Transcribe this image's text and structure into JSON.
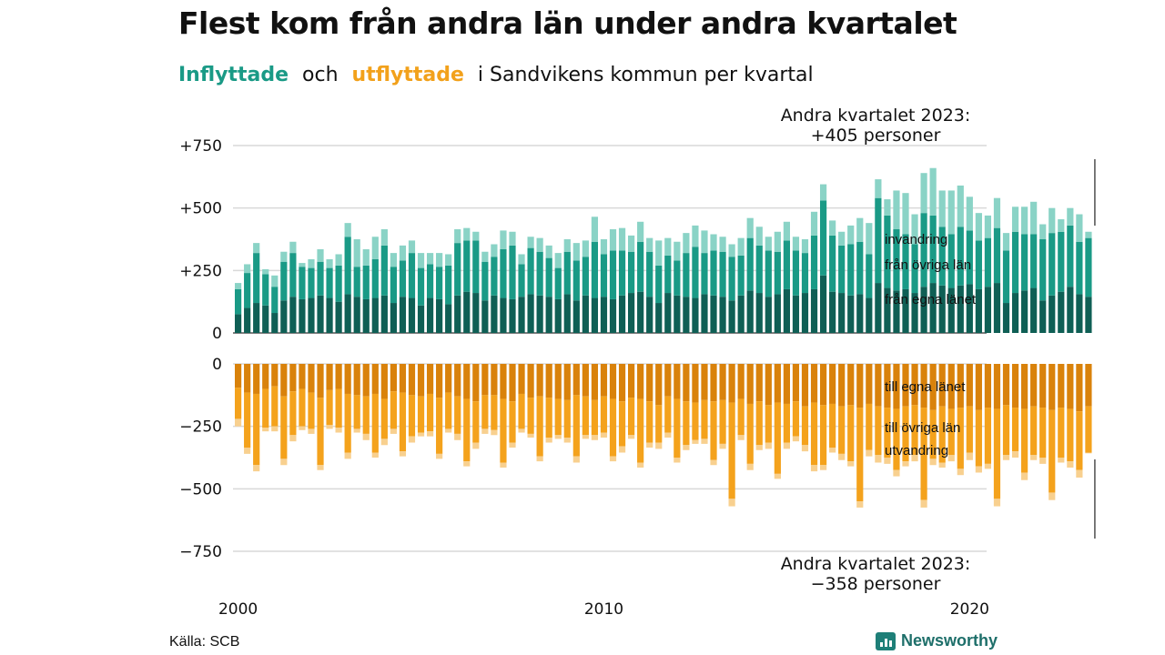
{
  "title": "Flest kom från andra län under andra kvartalet",
  "subtitle": {
    "in_word": "Inflyttade",
    "and_word": "och",
    "out_word": "utflyttade",
    "rest": "i Sandvikens kommun per kvartal"
  },
  "source": "Källa: SCB",
  "brand": "Newsworthy",
  "colors": {
    "in_local": "#0f5f55",
    "in_other": "#1a9a86",
    "in_abroad": "#8ad3c6",
    "out_local": "#d9820b",
    "out_other": "#f4a21c",
    "out_abroad": "#f8d08f",
    "grid": "#d9d9d9"
  },
  "chart_data": {
    "type": "bar",
    "stacked": true,
    "x_ticks": [
      "2000",
      "2010",
      "2020"
    ],
    "y_ticks_top": [
      "+750",
      "+500",
      "+250",
      "0"
    ],
    "y_ticks_bottom": [
      "0",
      "−250",
      "−500",
      "−750"
    ],
    "ylim_top": [
      0,
      750
    ],
    "ylim_bottom": [
      -750,
      0
    ],
    "grid": true,
    "annotation_top": [
      "Andra kvartalet 2023:",
      "+405 personer"
    ],
    "annotation_bottom": [
      "Andra kvartalet 2023:",
      "−358 personer"
    ],
    "series_labels_in": [
      "invandring",
      "från övriga län",
      "från egna länet"
    ],
    "series_labels_out": [
      "till egna länet",
      "till övriga län",
      "utvandring"
    ],
    "start_year": 2000,
    "start_quarter": 1,
    "in": {
      "local": [
        75,
        100,
        120,
        110,
        80,
        130,
        145,
        135,
        140,
        150,
        140,
        125,
        155,
        145,
        135,
        140,
        150,
        120,
        145,
        140,
        110,
        140,
        135,
        115,
        150,
        165,
        160,
        130,
        150,
        140,
        135,
        145,
        155,
        150,
        145,
        135,
        155,
        130,
        150,
        140,
        145,
        135,
        150,
        160,
        165,
        145,
        120,
        160,
        150,
        145,
        140,
        155,
        150,
        145,
        130,
        150,
        170,
        160,
        145,
        155,
        175,
        150,
        160,
        175,
        230,
        165,
        160,
        150,
        155,
        140,
        200,
        180,
        170,
        175,
        160,
        185,
        200,
        190,
        180,
        190,
        195,
        175,
        185,
        200,
        120,
        160,
        170,
        180,
        130,
        150,
        165,
        185,
        155,
        145
      ],
      "other": [
        100,
        140,
        200,
        125,
        105,
        155,
        175,
        130,
        120,
        135,
        120,
        145,
        230,
        120,
        135,
        155,
        200,
        145,
        145,
        180,
        150,
        135,
        130,
        155,
        210,
        205,
        210,
        155,
        155,
        195,
        215,
        130,
        185,
        175,
        155,
        125,
        170,
        160,
        155,
        225,
        170,
        195,
        180,
        165,
        200,
        180,
        150,
        150,
        140,
        175,
        205,
        165,
        180,
        180,
        175,
        160,
        210,
        190,
        185,
        170,
        195,
        180,
        160,
        215,
        300,
        225,
        190,
        205,
        210,
        175,
        340,
        290,
        245,
        220,
        195,
        295,
        270,
        235,
        215,
        235,
        215,
        195,
        195,
        220,
        210,
        245,
        225,
        215,
        245,
        250,
        240,
        245,
        210,
        235
      ],
      "abroad": [
        25,
        35,
        40,
        20,
        45,
        40,
        45,
        15,
        35,
        50,
        35,
        45,
        55,
        110,
        65,
        90,
        65,
        55,
        60,
        50,
        60,
        45,
        55,
        45,
        55,
        50,
        35,
        40,
        50,
        75,
        55,
        40,
        45,
        55,
        50,
        60,
        50,
        70,
        65,
        100,
        60,
        85,
        90,
        65,
        80,
        55,
        100,
        70,
        75,
        80,
        85,
        90,
        65,
        60,
        50,
        70,
        80,
        75,
        55,
        80,
        75,
        55,
        55,
        95,
        65,
        60,
        55,
        75,
        95,
        125,
        75,
        65,
        155,
        165,
        120,
        160,
        190,
        145,
        175,
        165,
        135,
        110,
        90,
        120,
        70,
        100,
        110,
        130,
        60,
        100,
        50,
        70,
        110,
        25
      ]
    },
    "out": {
      "local": [
        -95,
        -115,
        -120,
        -100,
        -90,
        -130,
        -110,
        -100,
        -115,
        -135,
        -105,
        -100,
        -120,
        -125,
        -130,
        -120,
        -140,
        -110,
        -115,
        -125,
        -130,
        -120,
        -135,
        -115,
        -130,
        -140,
        -150,
        -125,
        -125,
        -140,
        -150,
        -120,
        -135,
        -130,
        -135,
        -140,
        -145,
        -125,
        -130,
        -145,
        -130,
        -140,
        -150,
        -135,
        -140,
        -150,
        -165,
        -130,
        -140,
        -150,
        -155,
        -145,
        -150,
        -145,
        -155,
        -140,
        -160,
        -150,
        -165,
        -155,
        -160,
        -150,
        -170,
        -155,
        -165,
        -160,
        -170,
        -165,
        -175,
        -160,
        -170,
        -175,
        -180,
        -170,
        -165,
        -175,
        -185,
        -170,
        -180,
        -175,
        -170,
        -185,
        -175,
        -180,
        -165,
        -175,
        -180,
        -170,
        -175,
        -185,
        -175,
        -180,
        -190,
        -170
      ],
      "other": [
        -125,
        -220,
        -285,
        -155,
        -160,
        -250,
        -175,
        -150,
        -145,
        -270,
        -140,
        -155,
        -235,
        -135,
        -150,
        -235,
        -160,
        -150,
        -235,
        -165,
        -145,
        -150,
        -225,
        -145,
        -150,
        -250,
        -165,
        -135,
        -140,
        -255,
        -165,
        -140,
        -145,
        -240,
        -160,
        -145,
        -150,
        -245,
        -155,
        -140,
        -145,
        -230,
        -180,
        -150,
        -255,
        -165,
        -150,
        -145,
        -235,
        -175,
        -150,
        -155,
        -235,
        -175,
        -385,
        -145,
        -240,
        -175,
        -150,
        -285,
        -155,
        -140,
        -155,
        -250,
        -240,
        -175,
        -190,
        -225,
        -375,
        -185,
        -195,
        -200,
        -245,
        -220,
        -200,
        -370,
        -195,
        -225,
        -185,
        -245,
        -185,
        -225,
        -225,
        -360,
        -200,
        -175,
        -255,
        -195,
        -200,
        -330,
        -200,
        -210,
        -235,
        -185
      ],
      "abroad": [
        -30,
        -25,
        -25,
        -15,
        -20,
        -25,
        -25,
        -15,
        -20,
        -20,
        -15,
        -20,
        -25,
        -15,
        -25,
        -20,
        -25,
        -20,
        -20,
        -25,
        -15,
        -20,
        -20,
        -15,
        -25,
        -20,
        -25,
        -20,
        -20,
        -20,
        -20,
        -15,
        -15,
        -20,
        -20,
        -15,
        -20,
        -25,
        -15,
        -20,
        -20,
        -20,
        -25,
        -15,
        -20,
        -20,
        -25,
        -20,
        -20,
        -20,
        -15,
        -20,
        -20,
        -20,
        -30,
        -20,
        -25,
        -20,
        -25,
        -20,
        -25,
        -20,
        -25,
        -25,
        -20,
        -20,
        -25,
        -20,
        -25,
        -25,
        -30,
        -25,
        -25,
        -20,
        -25,
        -30,
        -25,
        -20,
        -25,
        -25,
        -30,
        -25,
        -20,
        -30,
        -20,
        -25,
        -30,
        -20,
        -25,
        -30,
        -20,
        -25,
        -30,
        -3
      ]
    }
  }
}
